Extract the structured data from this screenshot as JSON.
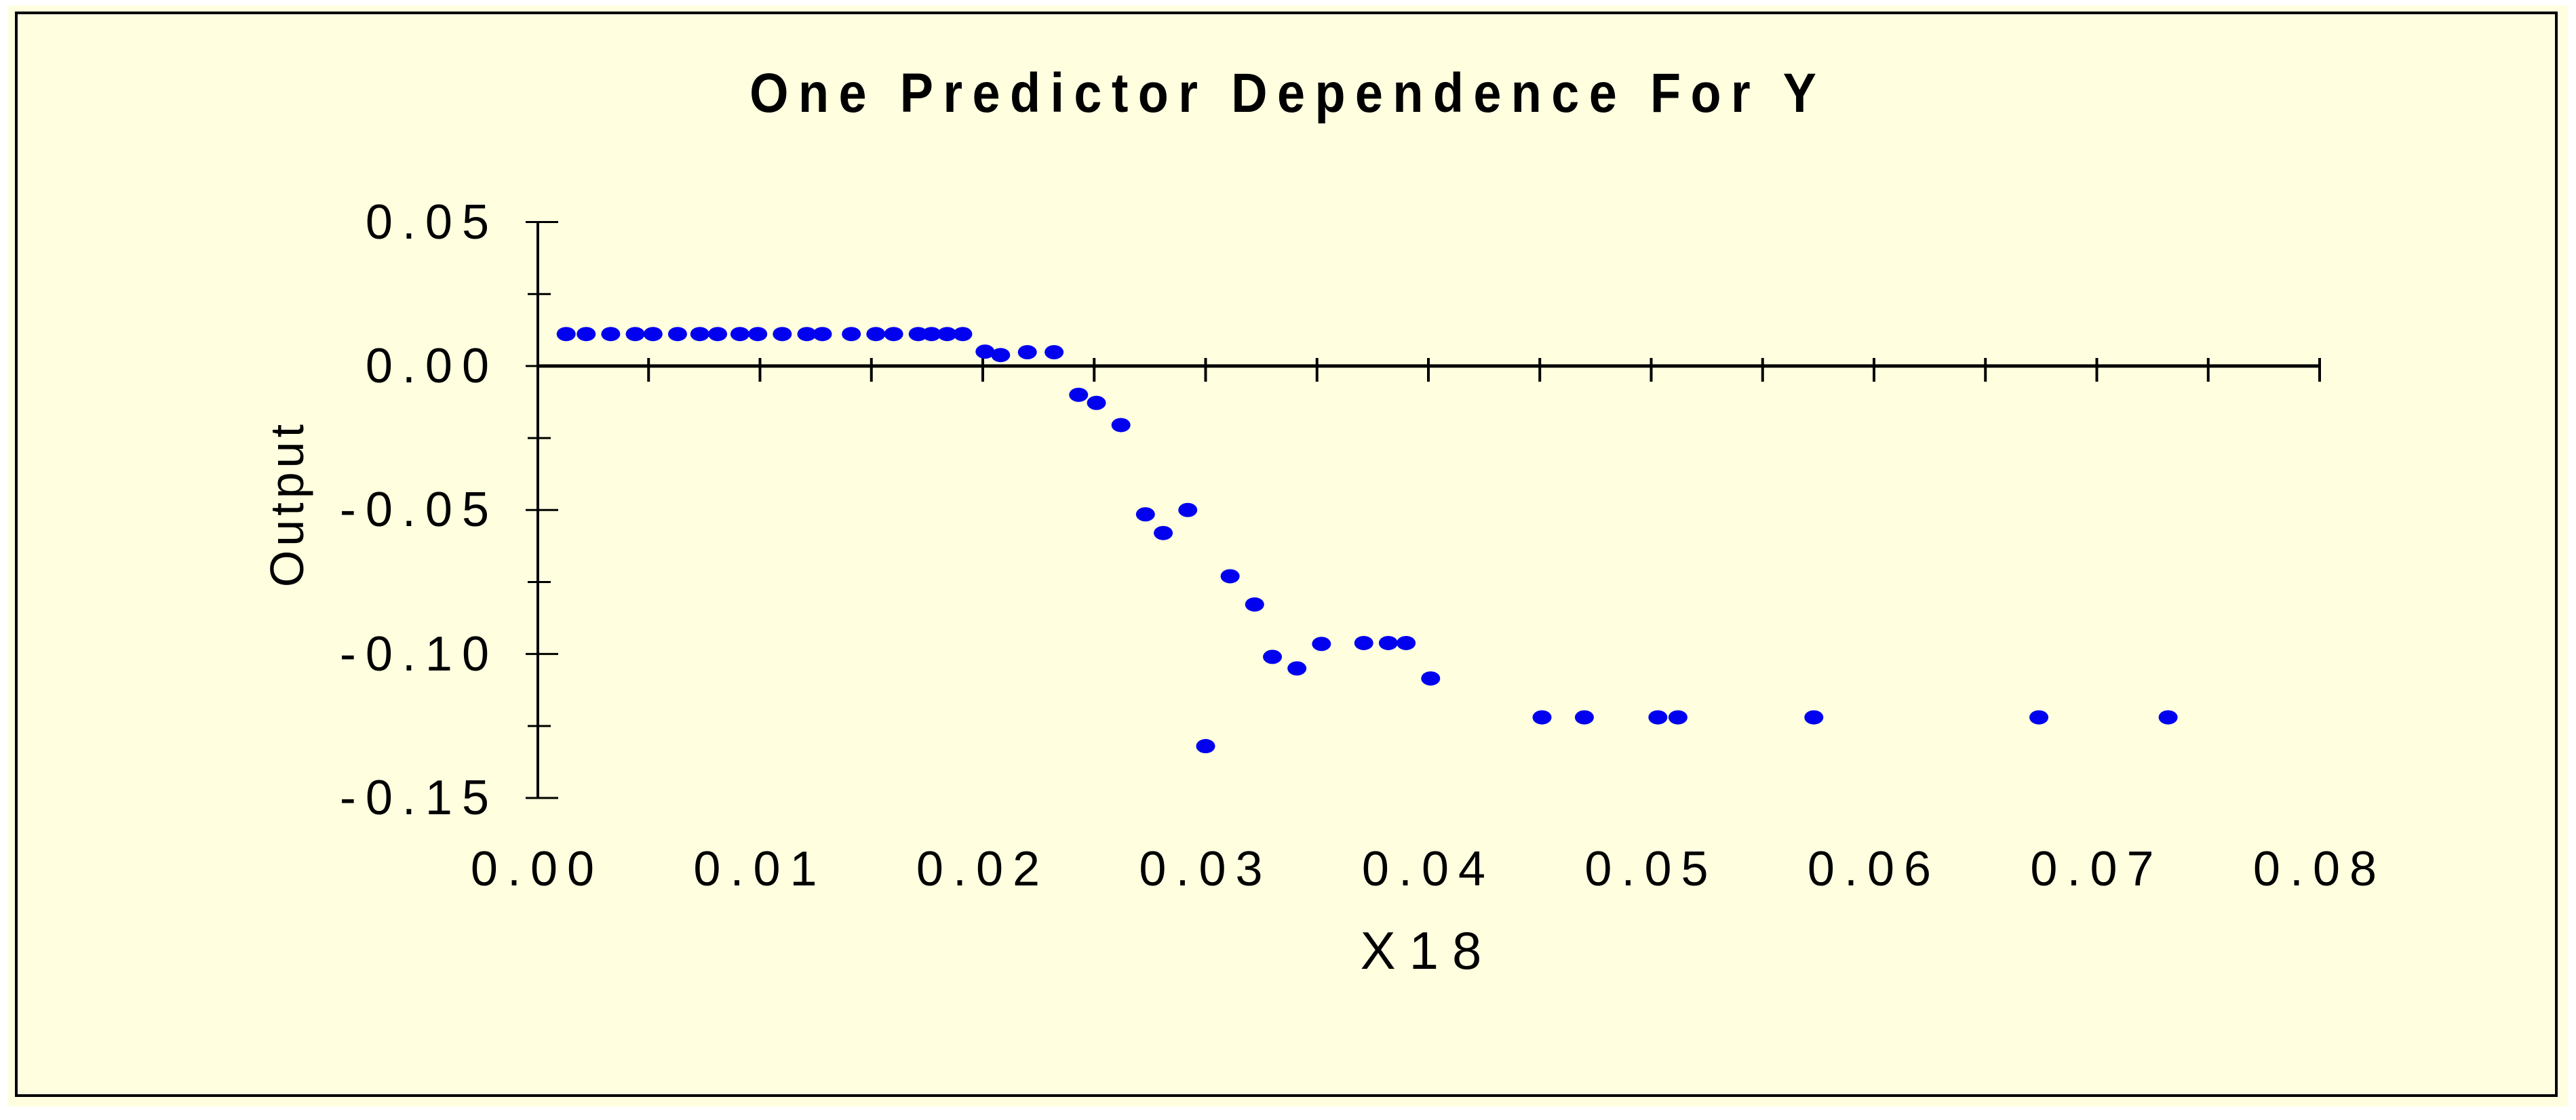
{
  "figure": {
    "background_color": "#FFFFE0",
    "frame_color": "#000000",
    "axis_color": "#000000",
    "dot_color": "#0101F0",
    "title": "One Predictor Dependence For Y"
  },
  "chart_data": {
    "type": "scatter",
    "title": "One Predictor Dependence For Y",
    "xlabel": "X18",
    "ylabel": "Output",
    "xlim": [
      0.0,
      0.08
    ],
    "ylim": [
      -0.15,
      0.05
    ],
    "grid": false,
    "legend": false,
    "x_major_ticks": [
      0.0,
      0.01,
      0.02,
      0.03,
      0.04,
      0.05,
      0.06,
      0.07,
      0.08
    ],
    "x_tick_labels": [
      "0.00",
      "0.01",
      "0.02",
      "0.03",
      "0.04",
      "0.05",
      "0.06",
      "0.07",
      "0.08"
    ],
    "x_axis_tick_step": 0.005,
    "y_major_ticks": [
      0.05,
      0.0,
      -0.05,
      -0.1,
      -0.15
    ],
    "y_tick_labels": [
      "0.05",
      "0.00",
      "-0.05",
      "-0.10",
      "-0.15"
    ],
    "y_minor_ticks": [
      0.025,
      -0.025,
      -0.075,
      -0.125
    ],
    "points": [
      [
        0.0013,
        0.0111
      ],
      [
        0.0022,
        0.0111
      ],
      [
        0.0033,
        0.0111
      ],
      [
        0.0044,
        0.0111
      ],
      [
        0.0052,
        0.0111
      ],
      [
        0.0063,
        0.0111
      ],
      [
        0.0073,
        0.0111
      ],
      [
        0.0081,
        0.0111
      ],
      [
        0.0091,
        0.0111
      ],
      [
        0.0099,
        0.0111
      ],
      [
        0.011,
        0.0111
      ],
      [
        0.0121,
        0.0111
      ],
      [
        0.0128,
        0.0111
      ],
      [
        0.0141,
        0.0111
      ],
      [
        0.0152,
        0.0111
      ],
      [
        0.016,
        0.0111
      ],
      [
        0.0171,
        0.0111
      ],
      [
        0.0177,
        0.0111
      ],
      [
        0.0184,
        0.0111
      ],
      [
        0.0191,
        0.0111
      ],
      [
        0.0201,
        0.005
      ],
      [
        0.0208,
        0.0038
      ],
      [
        0.022,
        0.0048
      ],
      [
        0.0232,
        0.0048
      ],
      [
        0.0243,
        -0.01
      ],
      [
        0.0251,
        -0.0128
      ],
      [
        0.0262,
        -0.0205
      ],
      [
        0.0273,
        -0.0515
      ],
      [
        0.0281,
        -0.058
      ],
      [
        0.0292,
        -0.05
      ],
      [
        0.03,
        -0.132
      ],
      [
        0.0311,
        -0.073
      ],
      [
        0.0322,
        -0.0828
      ],
      [
        0.033,
        -0.101
      ],
      [
        0.0341,
        -0.105
      ],
      [
        0.0352,
        -0.0965
      ],
      [
        0.0371,
        -0.0962
      ],
      [
        0.0382,
        -0.0962
      ],
      [
        0.039,
        -0.0962
      ],
      [
        0.0401,
        -0.1085
      ],
      [
        0.0451,
        -0.122
      ],
      [
        0.047,
        -0.122
      ],
      [
        0.0503,
        -0.122
      ],
      [
        0.0512,
        -0.122
      ],
      [
        0.0573,
        -0.122
      ],
      [
        0.0674,
        -0.122
      ],
      [
        0.0732,
        -0.122
      ]
    ]
  }
}
